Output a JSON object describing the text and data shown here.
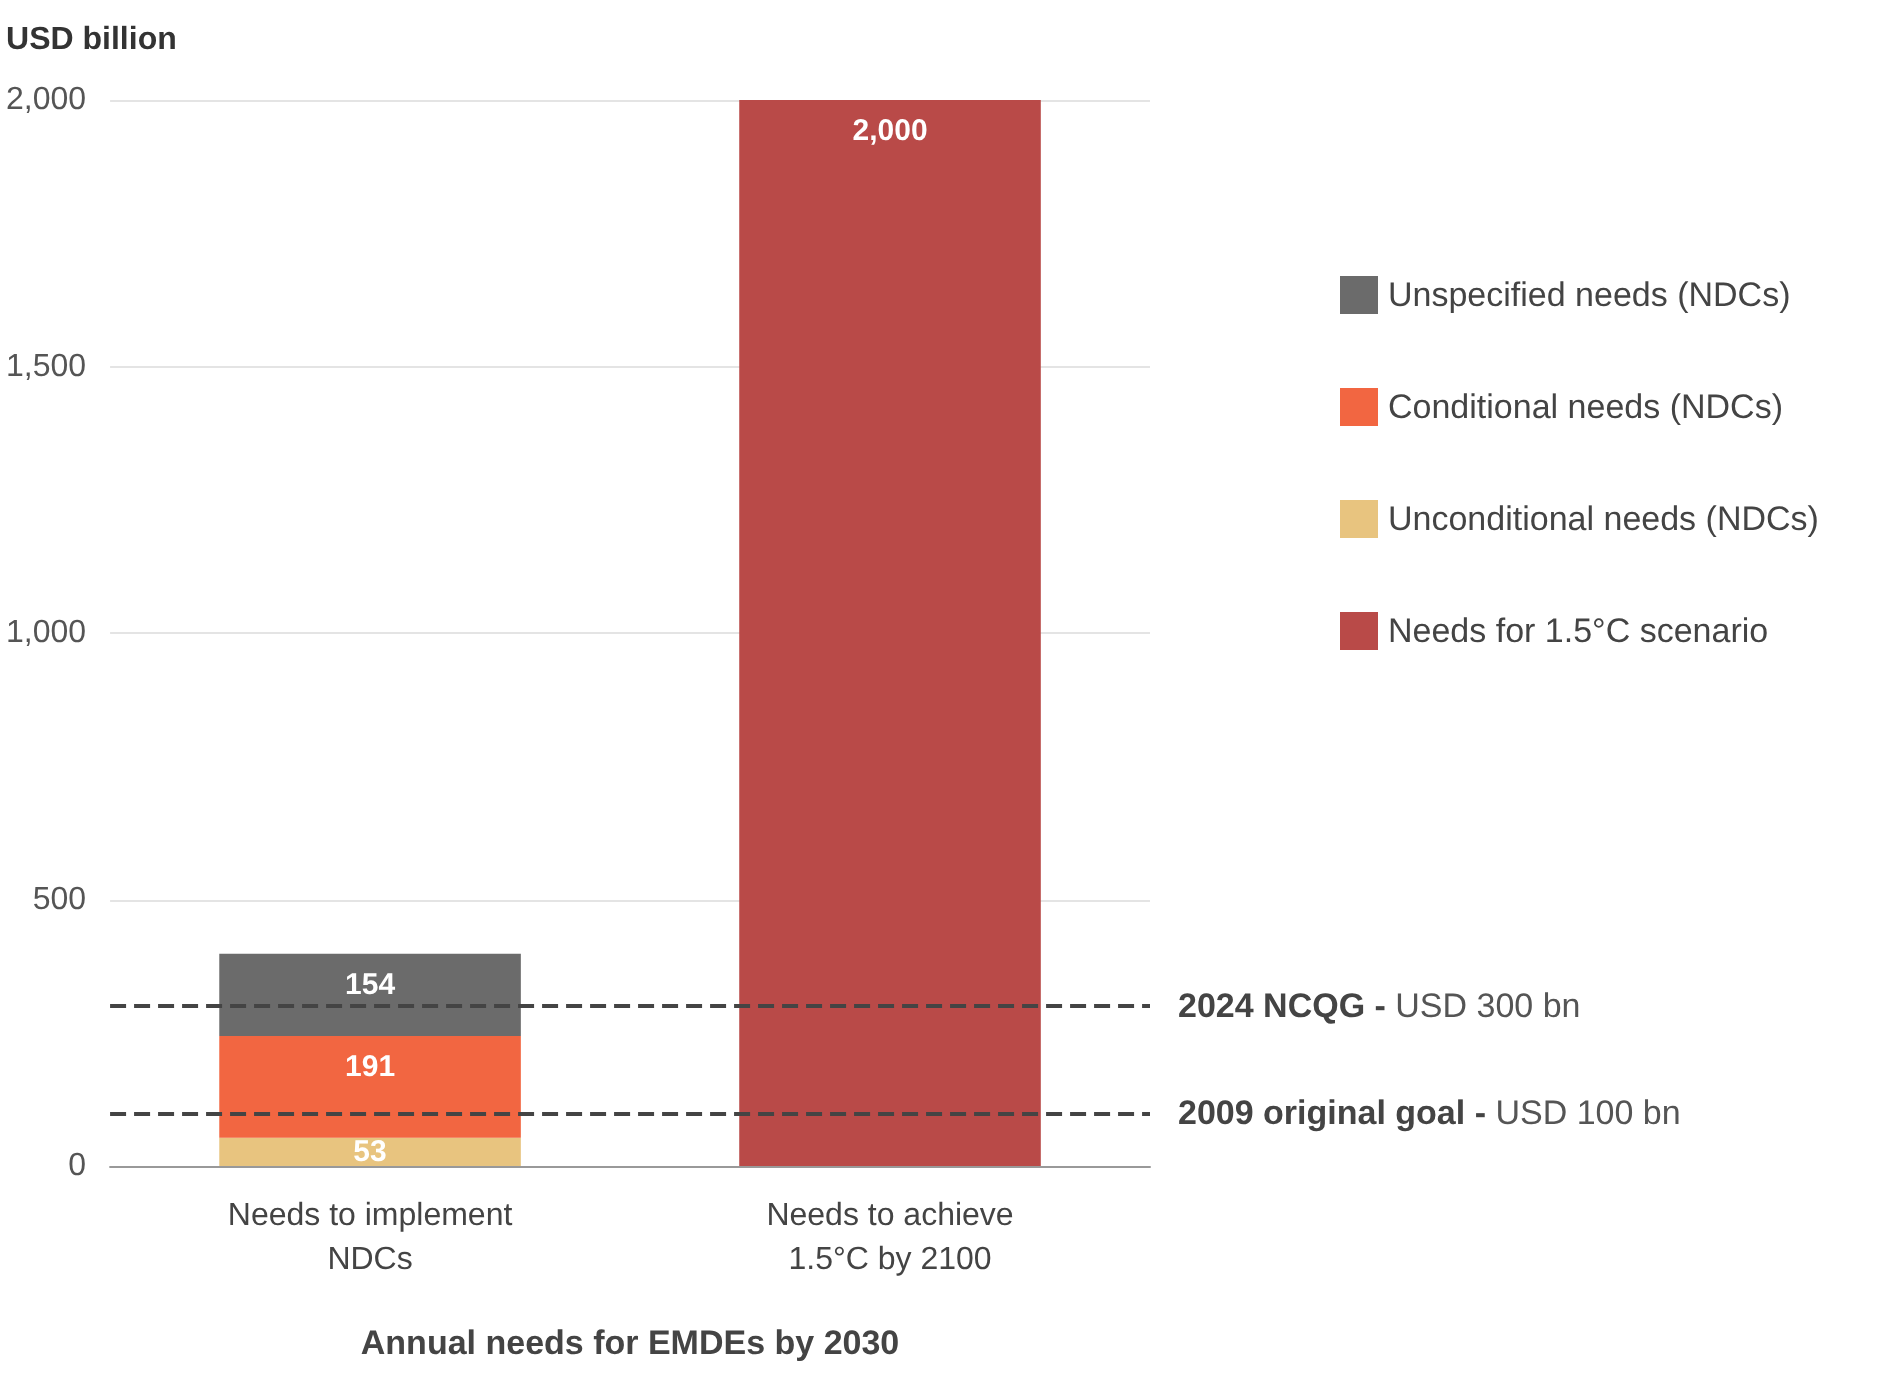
{
  "chart_data": {
    "type": "bar",
    "stacked": true,
    "ylabel": "USD billion",
    "xlabel": "Annual needs for EMDEs by 2030",
    "categories": [
      "Needs to implement\nNDCs",
      "Needs to achieve\n1.5°C by 2100"
    ],
    "series": [
      {
        "name": "Needs for 1.5°C scenario",
        "color": "#b94a48",
        "values": [
          null,
          2000
        ],
        "value_labels": [
          null,
          "2,000"
        ]
      },
      {
        "name": "Unconditional needs (NDCs)",
        "color": "#e8c47f",
        "values": [
          53,
          null
        ],
        "value_labels": [
          "53",
          null
        ]
      },
      {
        "name": "Conditional needs (NDCs)",
        "color": "#f26641",
        "values": [
          191,
          null
        ],
        "value_labels": [
          "191",
          null
        ]
      },
      {
        "name": "Unspecified needs (NDCs)",
        "color": "#6b6b6b",
        "values": [
          154,
          null
        ],
        "value_labels": [
          "154",
          null
        ]
      }
    ],
    "ylim": [
      0,
      2000
    ],
    "yticks": [
      0,
      500,
      {
        "value": 1000,
        "label": "1,000"
      },
      {
        "value": 1500,
        "label": "1,500"
      },
      {
        "value": 2000,
        "label": "2,000"
      }
    ],
    "grid": "y",
    "legend": "right",
    "ref_lines": [
      {
        "axis": "y",
        "value": 300,
        "label": "2024 NCQG - USD 300 bn",
        "color": "#444444",
        "line_style": "dashed"
      },
      {
        "axis": "y",
        "value": 100,
        "label": "2009 original goal - USD 100 bn",
        "color": "#444444",
        "line_style": "dashed"
      }
    ]
  }
}
